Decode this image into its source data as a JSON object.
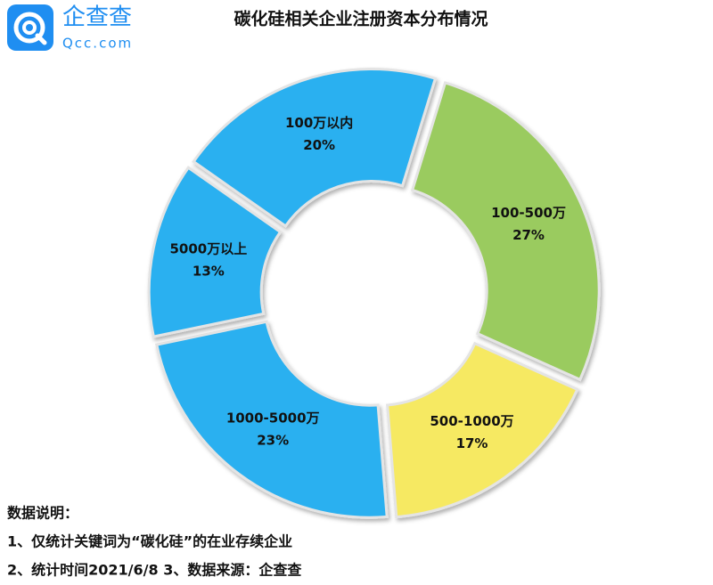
{
  "logo": {
    "name": "企查查",
    "domain": "Qcc.com"
  },
  "chart_data": {
    "type": "donut",
    "title": "碳化硅相关企业注册资本分布情况",
    "categories": [
      "100-500万",
      "500-1000万",
      "1000-5000万",
      "5000万以上",
      "100万以内"
    ],
    "values": [
      27,
      17,
      23,
      13,
      20
    ],
    "value_labels": [
      "27%",
      "17%",
      "23%",
      "13%",
      "20%"
    ],
    "colors": [
      "#9acb5f",
      "#f6e962",
      "#2cb0f0",
      "#2cb0f0",
      "#2cb0f0"
    ]
  },
  "notes": {
    "heading": "数据说明：",
    "lines": [
      "1、仅统计关键词为“碳化硅”的在业存续企业",
      "2、统计时间2021/6/8   3、数据来源：企查查"
    ]
  }
}
